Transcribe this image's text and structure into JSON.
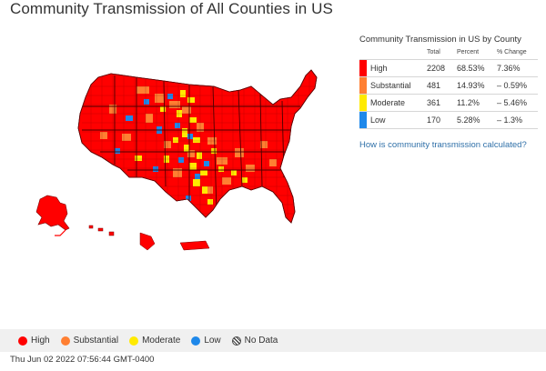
{
  "title": "Community Transmission of All Counties in US",
  "stats": {
    "title": "Community Transmission in US by County",
    "headers": [
      "Total",
      "Percent",
      "% Change"
    ],
    "rows": [
      {
        "level": "High",
        "total": "2208",
        "percent": "68.53%",
        "change": "7.36%",
        "color": "#ff0000"
      },
      {
        "level": "Substantial",
        "total": "481",
        "percent": "14.93%",
        "change": "– 0.59%",
        "color": "#ff7f32"
      },
      {
        "level": "Moderate",
        "total": "361",
        "percent": "11.2%",
        "change": "– 5.46%",
        "color": "#ffea00"
      },
      {
        "level": "Low",
        "total": "170",
        "percent": "5.28%",
        "change": "– 1.3%",
        "color": "#1e88ea"
      }
    ],
    "link_text": "How is community transmission calculated?"
  },
  "map": {
    "colors": {
      "high": "#ff0000",
      "substantial": "#ff7f32",
      "moderate": "#ffea00",
      "low": "#1e88ea",
      "border": "#8a0000"
    },
    "regions": [
      "contiguous-us",
      "alaska",
      "hawaii",
      "puerto-rico"
    ]
  },
  "legend": {
    "items": [
      {
        "label": "High",
        "color": "#ff0000",
        "icon": "dot"
      },
      {
        "label": "Substantial",
        "color": "#ff7f32",
        "icon": "dot"
      },
      {
        "label": "Moderate",
        "color": "#ffea00",
        "icon": "dot"
      },
      {
        "label": "Low",
        "color": "#1e88ea",
        "icon": "dot"
      },
      {
        "label": "No Data",
        "color": "#444444",
        "icon": "hatched-dot"
      }
    ]
  },
  "timestamp": "Thu Jun 02 2022 07:56:44 GMT-0400"
}
